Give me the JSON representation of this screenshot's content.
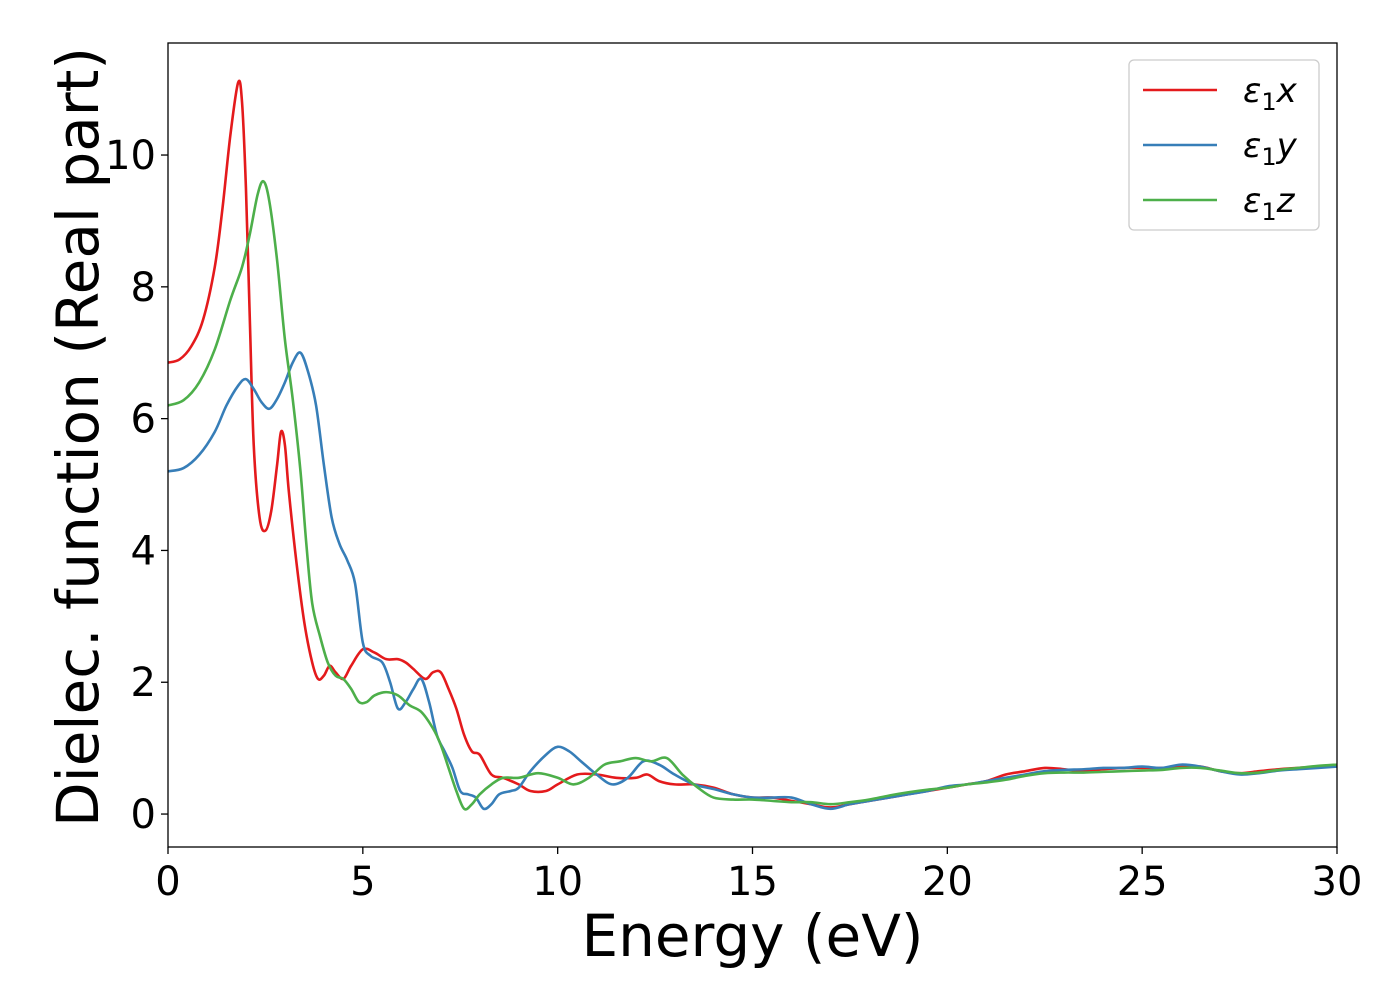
{
  "chart_data": {
    "type": "line",
    "title": "",
    "xlabel": "Energy (eV)",
    "ylabel": "Dielec. function (Real part)",
    "xlim": [
      0,
      30
    ],
    "ylim": [
      -0.5,
      11.7
    ],
    "xticks": [
      0,
      5,
      10,
      15,
      20,
      25,
      30
    ],
    "yticks": [
      0,
      2,
      4,
      6,
      8,
      10
    ],
    "xtick_labels": [
      "0",
      "5",
      "10",
      "15",
      "20",
      "25",
      "30"
    ],
    "ytick_labels": [
      "0",
      "2",
      "4",
      "6",
      "8",
      "10"
    ],
    "grid": false,
    "legend_position": "top-right",
    "series": [
      {
        "name": "ε₁x",
        "legend": {
          "symbol": "ε",
          "sub": "1",
          "var": "x"
        },
        "color": "#e41a1c",
        "points": [
          [
            0,
            6.85
          ],
          [
            0.3,
            6.9
          ],
          [
            0.6,
            7.1
          ],
          [
            0.9,
            7.5
          ],
          [
            1.2,
            8.3
          ],
          [
            1.4,
            9.2
          ],
          [
            1.6,
            10.3
          ],
          [
            1.8,
            11.1
          ],
          [
            1.9,
            10.8
          ],
          [
            2.0,
            9.5
          ],
          [
            2.1,
            7.5
          ],
          [
            2.2,
            5.6
          ],
          [
            2.35,
            4.5
          ],
          [
            2.5,
            4.3
          ],
          [
            2.65,
            4.6
          ],
          [
            2.8,
            5.3
          ],
          [
            2.9,
            5.8
          ],
          [
            3.0,
            5.6
          ],
          [
            3.1,
            4.9
          ],
          [
            3.3,
            3.8
          ],
          [
            3.5,
            2.9
          ],
          [
            3.7,
            2.3
          ],
          [
            3.85,
            2.05
          ],
          [
            4.0,
            2.1
          ],
          [
            4.15,
            2.25
          ],
          [
            4.3,
            2.15
          ],
          [
            4.5,
            2.05
          ],
          [
            4.7,
            2.25
          ],
          [
            5.0,
            2.5
          ],
          [
            5.3,
            2.45
          ],
          [
            5.6,
            2.35
          ],
          [
            5.9,
            2.35
          ],
          [
            6.1,
            2.3
          ],
          [
            6.3,
            2.2
          ],
          [
            6.6,
            2.05
          ],
          [
            6.8,
            2.15
          ],
          [
            7.0,
            2.15
          ],
          [
            7.2,
            1.9
          ],
          [
            7.4,
            1.6
          ],
          [
            7.6,
            1.2
          ],
          [
            7.8,
            0.95
          ],
          [
            8.0,
            0.9
          ],
          [
            8.3,
            0.6
          ],
          [
            8.6,
            0.55
          ],
          [
            9.0,
            0.45
          ],
          [
            9.3,
            0.35
          ],
          [
            9.7,
            0.35
          ],
          [
            10.0,
            0.45
          ],
          [
            10.5,
            0.6
          ],
          [
            11.0,
            0.6
          ],
          [
            11.5,
            0.55
          ],
          [
            12.0,
            0.55
          ],
          [
            12.3,
            0.6
          ],
          [
            12.6,
            0.5
          ],
          [
            13.0,
            0.45
          ],
          [
            13.5,
            0.45
          ],
          [
            14.0,
            0.4
          ],
          [
            14.5,
            0.3
          ],
          [
            15.0,
            0.25
          ],
          [
            15.5,
            0.25
          ],
          [
            16.0,
            0.2
          ],
          [
            16.5,
            0.15
          ],
          [
            17.0,
            0.1
          ],
          [
            17.5,
            0.15
          ],
          [
            18.0,
            0.2
          ],
          [
            18.5,
            0.25
          ],
          [
            19.0,
            0.3
          ],
          [
            19.5,
            0.35
          ],
          [
            20.0,
            0.4
          ],
          [
            20.5,
            0.45
          ],
          [
            21.0,
            0.5
          ],
          [
            21.5,
            0.6
          ],
          [
            22.0,
            0.65
          ],
          [
            22.5,
            0.7
          ],
          [
            23.0,
            0.68
          ],
          [
            23.5,
            0.65
          ],
          [
            24.0,
            0.68
          ],
          [
            24.5,
            0.7
          ],
          [
            25.0,
            0.7
          ],
          [
            25.5,
            0.7
          ],
          [
            26.0,
            0.72
          ],
          [
            26.5,
            0.72
          ],
          [
            27.0,
            0.65
          ],
          [
            27.5,
            0.62
          ],
          [
            28.0,
            0.65
          ],
          [
            28.5,
            0.68
          ],
          [
            29.0,
            0.7
          ],
          [
            29.5,
            0.72
          ],
          [
            30.0,
            0.73
          ]
        ]
      },
      {
        "name": "ε₁y",
        "legend": {
          "symbol": "ε",
          "sub": "1",
          "var": "y"
        },
        "color": "#377eb8",
        "points": [
          [
            0,
            5.2
          ],
          [
            0.4,
            5.25
          ],
          [
            0.8,
            5.45
          ],
          [
            1.2,
            5.8
          ],
          [
            1.5,
            6.2
          ],
          [
            1.8,
            6.5
          ],
          [
            2.0,
            6.6
          ],
          [
            2.2,
            6.45
          ],
          [
            2.4,
            6.25
          ],
          [
            2.6,
            6.15
          ],
          [
            2.8,
            6.3
          ],
          [
            3.0,
            6.55
          ],
          [
            3.2,
            6.85
          ],
          [
            3.4,
            7.0
          ],
          [
            3.6,
            6.7
          ],
          [
            3.8,
            6.2
          ],
          [
            4.0,
            5.3
          ],
          [
            4.2,
            4.5
          ],
          [
            4.4,
            4.1
          ],
          [
            4.6,
            3.85
          ],
          [
            4.8,
            3.5
          ],
          [
            5.0,
            2.6
          ],
          [
            5.2,
            2.4
          ],
          [
            5.5,
            2.3
          ],
          [
            5.7,
            2.0
          ],
          [
            5.9,
            1.6
          ],
          [
            6.1,
            1.7
          ],
          [
            6.3,
            1.9
          ],
          [
            6.5,
            2.05
          ],
          [
            6.7,
            1.7
          ],
          [
            6.9,
            1.2
          ],
          [
            7.1,
            0.95
          ],
          [
            7.3,
            0.7
          ],
          [
            7.5,
            0.35
          ],
          [
            7.7,
            0.3
          ],
          [
            7.9,
            0.25
          ],
          [
            8.1,
            0.08
          ],
          [
            8.3,
            0.15
          ],
          [
            8.5,
            0.3
          ],
          [
            8.8,
            0.35
          ],
          [
            9.0,
            0.4
          ],
          [
            9.3,
            0.65
          ],
          [
            9.7,
            0.9
          ],
          [
            10.0,
            1.02
          ],
          [
            10.3,
            0.95
          ],
          [
            10.6,
            0.8
          ],
          [
            11.0,
            0.6
          ],
          [
            11.4,
            0.45
          ],
          [
            11.8,
            0.55
          ],
          [
            12.2,
            0.8
          ],
          [
            12.6,
            0.75
          ],
          [
            13.0,
            0.6
          ],
          [
            13.5,
            0.45
          ],
          [
            14.0,
            0.38
          ],
          [
            14.5,
            0.3
          ],
          [
            15.0,
            0.25
          ],
          [
            15.5,
            0.25
          ],
          [
            16.0,
            0.25
          ],
          [
            16.5,
            0.15
          ],
          [
            17.0,
            0.08
          ],
          [
            17.5,
            0.15
          ],
          [
            18.0,
            0.2
          ],
          [
            18.5,
            0.25
          ],
          [
            19.0,
            0.3
          ],
          [
            19.5,
            0.35
          ],
          [
            20.0,
            0.42
          ],
          [
            20.5,
            0.45
          ],
          [
            21.0,
            0.5
          ],
          [
            21.5,
            0.55
          ],
          [
            22.0,
            0.6
          ],
          [
            22.5,
            0.65
          ],
          [
            23.0,
            0.67
          ],
          [
            23.5,
            0.68
          ],
          [
            24.0,
            0.7
          ],
          [
            24.5,
            0.7
          ],
          [
            25.0,
            0.72
          ],
          [
            25.5,
            0.7
          ],
          [
            26.0,
            0.75
          ],
          [
            26.5,
            0.72
          ],
          [
            27.0,
            0.65
          ],
          [
            27.5,
            0.6
          ],
          [
            28.0,
            0.62
          ],
          [
            28.5,
            0.66
          ],
          [
            29.0,
            0.68
          ],
          [
            29.5,
            0.7
          ],
          [
            30.0,
            0.72
          ]
        ]
      },
      {
        "name": "ε₁z",
        "legend": {
          "symbol": "ε",
          "sub": "1",
          "var": "z"
        },
        "color": "#4daf4a",
        "points": [
          [
            0,
            6.2
          ],
          [
            0.4,
            6.28
          ],
          [
            0.8,
            6.55
          ],
          [
            1.2,
            7.05
          ],
          [
            1.6,
            7.8
          ],
          [
            1.9,
            8.3
          ],
          [
            2.1,
            8.8
          ],
          [
            2.3,
            9.4
          ],
          [
            2.45,
            9.6
          ],
          [
            2.6,
            9.3
          ],
          [
            2.8,
            8.4
          ],
          [
            3.0,
            7.2
          ],
          [
            3.2,
            6.3
          ],
          [
            3.4,
            5.2
          ],
          [
            3.55,
            4.1
          ],
          [
            3.7,
            3.2
          ],
          [
            3.9,
            2.7
          ],
          [
            4.1,
            2.3
          ],
          [
            4.3,
            2.1
          ],
          [
            4.5,
            2.05
          ],
          [
            4.7,
            1.9
          ],
          [
            4.9,
            1.7
          ],
          [
            5.1,
            1.7
          ],
          [
            5.3,
            1.8
          ],
          [
            5.6,
            1.85
          ],
          [
            5.9,
            1.8
          ],
          [
            6.2,
            1.65
          ],
          [
            6.5,
            1.55
          ],
          [
            6.8,
            1.3
          ],
          [
            7.0,
            1.05
          ],
          [
            7.2,
            0.7
          ],
          [
            7.4,
            0.35
          ],
          [
            7.6,
            0.08
          ],
          [
            7.8,
            0.15
          ],
          [
            8.0,
            0.3
          ],
          [
            8.3,
            0.45
          ],
          [
            8.6,
            0.55
          ],
          [
            9.0,
            0.55
          ],
          [
            9.5,
            0.62
          ],
          [
            10.0,
            0.55
          ],
          [
            10.4,
            0.45
          ],
          [
            10.8,
            0.55
          ],
          [
            11.2,
            0.75
          ],
          [
            11.6,
            0.8
          ],
          [
            12.0,
            0.85
          ],
          [
            12.4,
            0.8
          ],
          [
            12.8,
            0.85
          ],
          [
            13.2,
            0.6
          ],
          [
            13.6,
            0.4
          ],
          [
            14.0,
            0.25
          ],
          [
            14.5,
            0.22
          ],
          [
            15.0,
            0.22
          ],
          [
            15.5,
            0.2
          ],
          [
            16.0,
            0.18
          ],
          [
            16.5,
            0.18
          ],
          [
            17.0,
            0.15
          ],
          [
            17.5,
            0.18
          ],
          [
            18.0,
            0.22
          ],
          [
            18.5,
            0.28
          ],
          [
            19.0,
            0.33
          ],
          [
            19.5,
            0.37
          ],
          [
            20.0,
            0.4
          ],
          [
            20.5,
            0.45
          ],
          [
            21.0,
            0.48
          ],
          [
            21.5,
            0.52
          ],
          [
            22.0,
            0.58
          ],
          [
            22.5,
            0.62
          ],
          [
            23.0,
            0.63
          ],
          [
            23.5,
            0.63
          ],
          [
            24.0,
            0.64
          ],
          [
            24.5,
            0.65
          ],
          [
            25.0,
            0.66
          ],
          [
            25.5,
            0.67
          ],
          [
            26.0,
            0.7
          ],
          [
            26.5,
            0.7
          ],
          [
            27.0,
            0.66
          ],
          [
            27.5,
            0.62
          ],
          [
            28.0,
            0.63
          ],
          [
            28.5,
            0.67
          ],
          [
            29.0,
            0.7
          ],
          [
            29.5,
            0.73
          ],
          [
            30.0,
            0.75
          ]
        ]
      }
    ]
  }
}
